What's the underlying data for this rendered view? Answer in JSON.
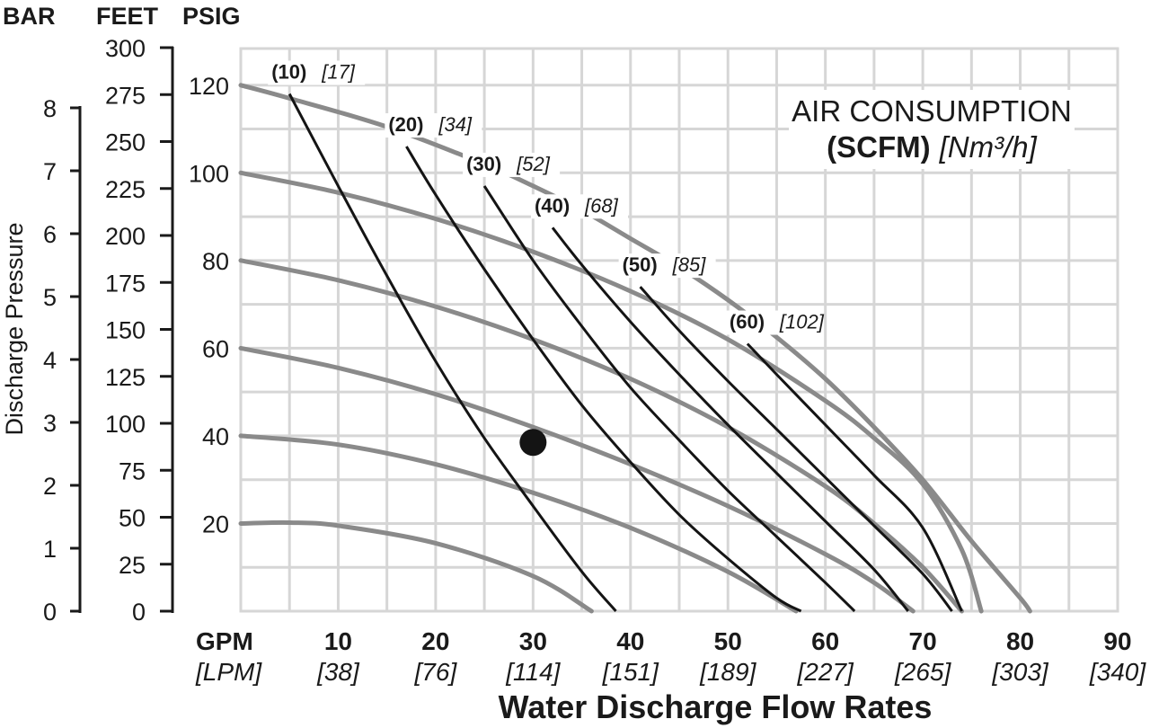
{
  "chart_data": {
    "type": "line",
    "axis_units": {
      "bar": "BAR",
      "feet": "FEET",
      "psig": "PSIG",
      "gpm": "GPM",
      "lpm": "[LPM]"
    },
    "ylabel": "Discharge Pressure",
    "xlabel": "Water Discharge Flow Rates",
    "bar_ticks": [
      "0",
      "1",
      "2",
      "3",
      "4",
      "5",
      "6",
      "7",
      "8"
    ],
    "feet_ticks": [
      "0",
      "25",
      "50",
      "75",
      "100",
      "125",
      "150",
      "175",
      "200",
      "225",
      "250",
      "275",
      "300"
    ],
    "psig_ticks": [
      "20",
      "40",
      "60",
      "80",
      "100",
      "120"
    ],
    "gpm_ticks": [
      "10",
      "20",
      "30",
      "40",
      "50",
      "60",
      "70",
      "80",
      "90"
    ],
    "lpm_ticks": [
      "[38]",
      "[76]",
      "[114]",
      "[151]",
      "[189]",
      "[227]",
      "[265]",
      "[303]",
      "[340]"
    ],
    "xlim": [
      0,
      90
    ],
    "ylim": [
      0,
      130
    ],
    "grid": true,
    "legend": {
      "line1": "AIR CONSUMPTION",
      "line2_bold": "(SCFM)",
      "line2_italic": "[Nm³/h]"
    },
    "pressure_curves": [
      {
        "x": [
          0,
          5,
          15,
          25,
          30,
          35,
          40,
          45,
          50,
          55,
          60,
          65,
          70,
          75,
          80,
          81
        ],
        "y": [
          120,
          117,
          110.5,
          102,
          97,
          91.5,
          85,
          78.5,
          71,
          62.5,
          53,
          42,
          30,
          16,
          3,
          0
        ]
      },
      {
        "x": [
          0,
          10,
          20,
          30,
          40,
          50,
          60,
          65,
          70,
          74,
          76
        ],
        "y": [
          100,
          95.5,
          89.5,
          82,
          73,
          62,
          48,
          39.5,
          29,
          14,
          0
        ]
      },
      {
        "x": [
          0,
          10,
          20,
          30,
          40,
          50,
          60,
          65,
          70,
          74
        ],
        "y": [
          80,
          75.5,
          69.5,
          62,
          53,
          42,
          28.5,
          20,
          10,
          0
        ]
      },
      {
        "x": [
          0,
          10,
          20,
          30,
          40,
          50,
          60,
          65,
          69
        ],
        "y": [
          60,
          55.5,
          49.5,
          42,
          33.5,
          24,
          13,
          6.5,
          0
        ]
      },
      {
        "x": [
          0,
          10,
          20,
          30,
          40,
          50,
          57
        ],
        "y": [
          40,
          38,
          33.5,
          27,
          19,
          9,
          0
        ]
      },
      {
        "x": [
          0,
          5,
          10,
          20,
          30,
          36
        ],
        "y": [
          20,
          20.2,
          19.5,
          15.5,
          8,
          0
        ]
      }
    ],
    "air_curves": [
      {
        "label": "(10)",
        "label2": "[17]",
        "x": [
          5,
          10,
          15,
          20,
          25,
          30,
          35,
          38.5
        ],
        "y": [
          118,
          97,
          76.5,
          57,
          39.5,
          24,
          9,
          0
        ]
      },
      {
        "label": "(20)",
        "label2": "[34]",
        "x": [
          17,
          20,
          25,
          30,
          35,
          40,
          45,
          50,
          55,
          57.5
        ],
        "y": [
          106,
          95,
          78,
          62,
          47,
          34,
          22,
          12,
          3,
          0
        ]
      },
      {
        "label": "(30)",
        "label2": "[52]",
        "x": [
          25,
          30,
          35,
          40,
          45,
          50,
          55,
          60,
          63
        ],
        "y": [
          97,
          80,
          65,
          51,
          39,
          27.5,
          17,
          6.5,
          0
        ]
      },
      {
        "label": "(40)",
        "label2": "[68]",
        "x": [
          32,
          35,
          40,
          45,
          50,
          55,
          60,
          65,
          68.5
        ],
        "y": [
          87.5,
          79,
          66,
          54,
          42.5,
          31.5,
          20.5,
          9.5,
          0
        ]
      },
      {
        "label": "(50)",
        "label2": "[85]",
        "x": [
          41,
          45,
          50,
          55,
          60,
          65,
          70,
          73
        ],
        "y": [
          74,
          64,
          52.5,
          41.5,
          30.5,
          19.5,
          8.5,
          0
        ]
      },
      {
        "label": "(60)",
        "label2": "[102]",
        "x": [
          52,
          55,
          60,
          65,
          70,
          74
        ],
        "y": [
          61,
          54,
          42.5,
          31,
          19,
          0
        ]
      }
    ],
    "marker": {
      "x": 30,
      "y": 38.5
    }
  }
}
